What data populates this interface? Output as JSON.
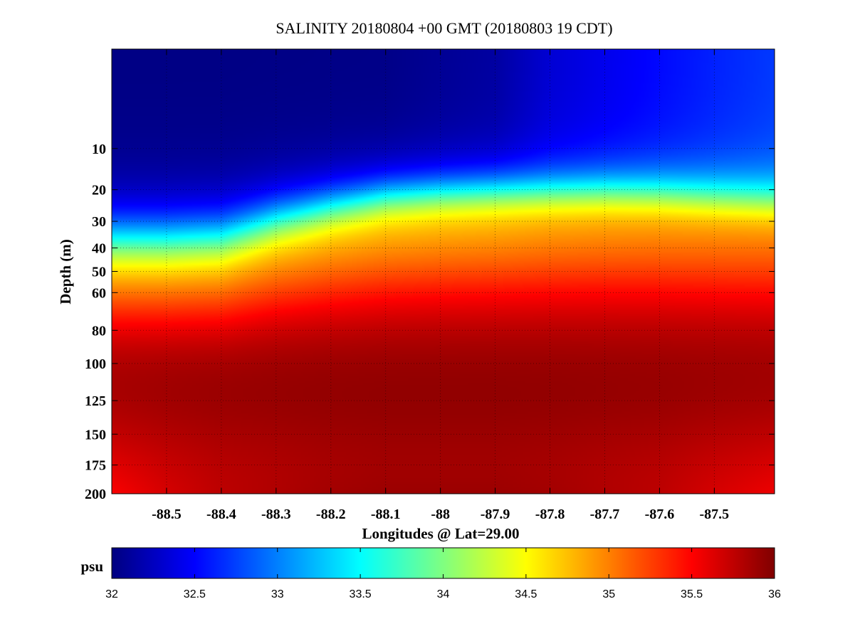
{
  "chart_data": {
    "type": "heatmap",
    "title": "SALINITY 20180804 +00 GMT (20180803 19 CDT)",
    "xlabel": "Longitudes @ Lat=29.00",
    "ylabel": "Depth (m)",
    "xlim": [
      -88.6,
      -87.39
    ],
    "ylim": [
      0,
      200
    ],
    "y_reversed": true,
    "y_scale": "sqrt",
    "grid": true,
    "x_ticks": [
      -88.5,
      -88.4,
      -88.3,
      -88.2,
      -88.1,
      -88,
      -87.9,
      -87.8,
      -87.7,
      -87.6,
      -87.5
    ],
    "x_tick_labels": [
      "-88.5",
      "-88.4",
      "-88.3",
      "-88.2",
      "-88.1",
      "-88",
      "-87.9",
      "-87.8",
      "-87.7",
      "-87.6",
      "-87.5"
    ],
    "y_ticks": [
      10,
      20,
      30,
      40,
      50,
      60,
      80,
      100,
      125,
      150,
      175,
      200
    ],
    "y_tick_labels": [
      "10",
      "20",
      "30",
      "40",
      "50",
      "60",
      "80",
      "100",
      "125",
      "150",
      "175",
      "200"
    ],
    "x": [
      -88.6,
      -88.5,
      -88.4,
      -88.3,
      -88.2,
      -88.1,
      -88.0,
      -87.9,
      -87.8,
      -87.7,
      -87.6,
      -87.5,
      -87.39
    ],
    "mixed_layer_base_depth": [
      35,
      35,
      34,
      28,
      24,
      21,
      20,
      19.5,
      19.5,
      19.5,
      20,
      21,
      22
    ],
    "surface_salinity": [
      32.0,
      32.0,
      32.0,
      32.0,
      32.0,
      32.0,
      32.05,
      32.1,
      32.3,
      32.4,
      32.5,
      32.6,
      32.7
    ],
    "deep_salinity_at_200m": [
      35.5,
      35.65,
      35.75,
      35.8,
      35.85,
      35.88,
      35.88,
      35.88,
      35.85,
      35.8,
      35.75,
      35.65,
      35.55
    ],
    "colorbar": {
      "label": "psu",
      "min": 32,
      "max": 36,
      "colormap": "jet",
      "ticks": [
        32,
        32.5,
        33,
        33.5,
        34,
        34.5,
        35,
        35.5,
        36
      ],
      "tick_labels": [
        "32",
        "32.5",
        "33",
        "33.5",
        "34",
        "34.5",
        "35",
        "35.5",
        "36"
      ]
    }
  }
}
